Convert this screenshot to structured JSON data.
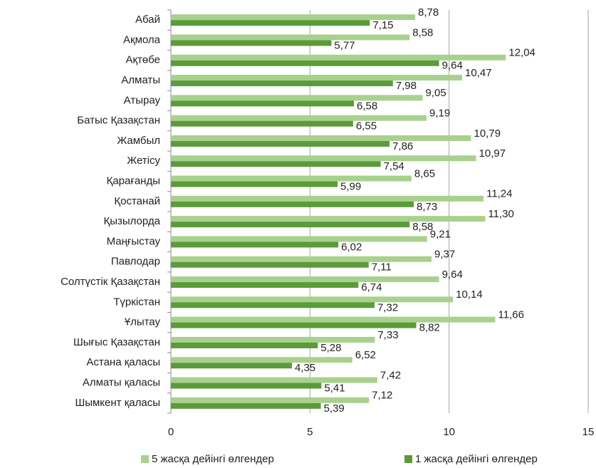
{
  "chart_data": {
    "type": "bar",
    "orientation": "horizontal",
    "categories": [
      "Абай",
      "Ақмола",
      "Ақтөбе",
      "Алматы",
      "Атырау",
      "Батыс Қазақстан",
      "Жамбыл",
      "Жетісу",
      "Қарағанды",
      "Қостанай",
      "Қызылорда",
      "Маңғыстау",
      "Павлодар",
      "Солтүстік Қазақстан",
      "Түркістан",
      "Ұлытау",
      "Шығыс Қазақстан",
      "Астана қаласы",
      "Алматы қаласы",
      "Шымкент қаласы"
    ],
    "series": [
      {
        "name": "5 жасқа дейінгі өлгендер",
        "color": "#a9d18e",
        "values": [
          8.78,
          8.58,
          12.04,
          10.47,
          9.05,
          9.19,
          10.79,
          10.97,
          8.65,
          11.24,
          11.3,
          9.21,
          9.37,
          9.64,
          10.14,
          11.66,
          7.33,
          6.52,
          7.42,
          7.12
        ],
        "value_labels": [
          "8,78",
          "8,58",
          "12,04",
          "10,47",
          "9,05",
          "9,19",
          "10,79",
          "10,97",
          "8,65",
          "11,24",
          "11,30",
          "9,21",
          "9,37",
          "9,64",
          "10,14",
          "11,66",
          "7,33",
          "6,52",
          "7,42",
          "7,12"
        ]
      },
      {
        "name": "1 жасқа дейінгі өлгендер",
        "color": "#5b9b3a",
        "values": [
          7.15,
          5.77,
          9.64,
          7.98,
          6.58,
          6.55,
          7.86,
          7.54,
          5.99,
          8.73,
          8.58,
          6.02,
          7.11,
          6.74,
          7.32,
          8.82,
          5.28,
          4.35,
          5.41,
          5.39
        ],
        "value_labels": [
          "7,15",
          "5,77",
          "9,64",
          "7,98",
          "6,58",
          "6,55",
          "7,86",
          "7,54",
          "5,99",
          "8,73",
          "8,58",
          "6,02",
          "7,11",
          "6,74",
          "7,32",
          "8,82",
          "5,28",
          "4,35",
          "5,41",
          "5,39"
        ]
      }
    ],
    "xlim": [
      0,
      15
    ],
    "xticks": [
      0,
      5,
      10,
      15
    ],
    "grid": true,
    "legend": "bottom"
  }
}
